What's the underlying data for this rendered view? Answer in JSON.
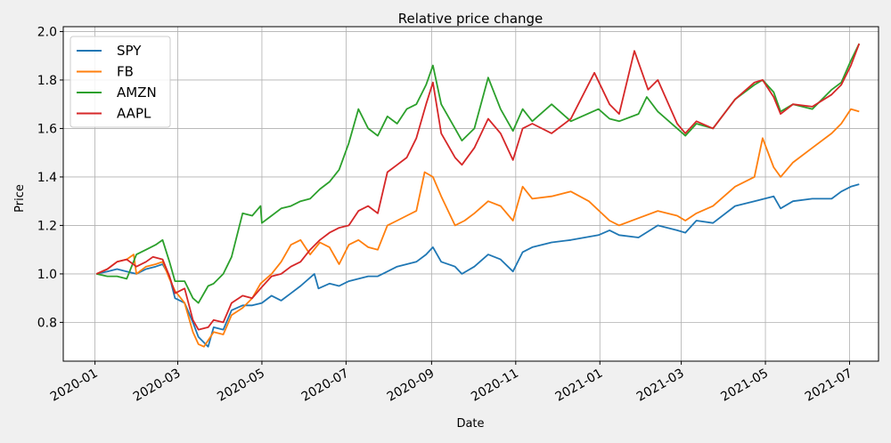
{
  "chart_data": {
    "type": "line",
    "title": "Relative price change",
    "xlabel": "Date",
    "ylabel": "Price",
    "xlim": [
      "2019-12-09",
      "2021-07-22"
    ],
    "ylim": [
      0.64,
      2.02
    ],
    "x_ticks": [
      "2020-01",
      "2020-03",
      "2020-05",
      "2020-07",
      "2020-09",
      "2020-11",
      "2021-01",
      "2021-03",
      "2021-05",
      "2021-07"
    ],
    "y_ticks": [
      0.8,
      1.0,
      1.2,
      1.4,
      1.6,
      1.8,
      2.0
    ],
    "grid": true,
    "legend_position": "top-left",
    "series": [
      {
        "name": "SPY",
        "color": "#1f77b4",
        "points": [
          [
            "2020-01-02",
            1.0
          ],
          [
            "2020-01-10",
            1.01
          ],
          [
            "2020-01-17",
            1.02
          ],
          [
            "2020-01-24",
            1.01
          ],
          [
            "2020-01-31",
            1.0
          ],
          [
            "2020-02-07",
            1.02
          ],
          [
            "2020-02-14",
            1.03
          ],
          [
            "2020-02-19",
            1.04
          ],
          [
            "2020-02-24",
            0.99
          ],
          [
            "2020-02-28",
            0.9
          ],
          [
            "2020-03-06",
            0.88
          ],
          [
            "2020-03-12",
            0.8
          ],
          [
            "2020-03-16",
            0.74
          ],
          [
            "2020-03-23",
            0.7
          ],
          [
            "2020-03-27",
            0.78
          ],
          [
            "2020-04-03",
            0.77
          ],
          [
            "2020-04-09",
            0.85
          ],
          [
            "2020-04-17",
            0.87
          ],
          [
            "2020-04-24",
            0.87
          ],
          [
            "2020-05-01",
            0.88
          ],
          [
            "2020-05-08",
            0.91
          ],
          [
            "2020-05-15",
            0.89
          ],
          [
            "2020-05-22",
            0.92
          ],
          [
            "2020-05-29",
            0.95
          ],
          [
            "2020-06-08",
            1.0
          ],
          [
            "2020-06-11",
            0.94
          ],
          [
            "2020-06-19",
            0.96
          ],
          [
            "2020-06-26",
            0.95
          ],
          [
            "2020-07-03",
            0.97
          ],
          [
            "2020-07-10",
            0.98
          ],
          [
            "2020-07-17",
            0.99
          ],
          [
            "2020-07-24",
            0.99
          ],
          [
            "2020-07-31",
            1.01
          ],
          [
            "2020-08-07",
            1.03
          ],
          [
            "2020-08-14",
            1.04
          ],
          [
            "2020-08-21",
            1.05
          ],
          [
            "2020-08-28",
            1.08
          ],
          [
            "2020-09-02",
            1.11
          ],
          [
            "2020-09-08",
            1.05
          ],
          [
            "2020-09-18",
            1.03
          ],
          [
            "2020-09-23",
            1.0
          ],
          [
            "2020-10-02",
            1.03
          ],
          [
            "2020-10-12",
            1.08
          ],
          [
            "2020-10-21",
            1.06
          ],
          [
            "2020-10-30",
            1.01
          ],
          [
            "2020-11-06",
            1.09
          ],
          [
            "2020-11-13",
            1.11
          ],
          [
            "2020-11-27",
            1.13
          ],
          [
            "2020-12-11",
            1.14
          ],
          [
            "2020-12-31",
            1.16
          ],
          [
            "2021-01-08",
            1.18
          ],
          [
            "2021-01-15",
            1.16
          ],
          [
            "2021-01-29",
            1.15
          ],
          [
            "2021-02-12",
            1.2
          ],
          [
            "2021-02-26",
            1.18
          ],
          [
            "2021-03-04",
            1.17
          ],
          [
            "2021-03-12",
            1.22
          ],
          [
            "2021-03-24",
            1.21
          ],
          [
            "2021-04-09",
            1.28
          ],
          [
            "2021-04-23",
            1.3
          ],
          [
            "2021-05-07",
            1.32
          ],
          [
            "2021-05-12",
            1.27
          ],
          [
            "2021-05-21",
            1.3
          ],
          [
            "2021-06-04",
            1.31
          ],
          [
            "2021-06-18",
            1.31
          ],
          [
            "2021-06-25",
            1.34
          ],
          [
            "2021-07-02",
            1.36
          ],
          [
            "2021-07-08",
            1.37
          ]
        ]
      },
      {
        "name": "FB",
        "color": "#ff7f0e",
        "points": [
          [
            "2020-01-02",
            1.0
          ],
          [
            "2020-01-10",
            1.02
          ],
          [
            "2020-01-17",
            1.05
          ],
          [
            "2020-01-24",
            1.06
          ],
          [
            "2020-01-29",
            1.08
          ],
          [
            "2020-01-31",
            1.0
          ],
          [
            "2020-02-07",
            1.03
          ],
          [
            "2020-02-14",
            1.04
          ],
          [
            "2020-02-19",
            1.05
          ],
          [
            "2020-02-24",
            0.98
          ],
          [
            "2020-02-28",
            0.93
          ],
          [
            "2020-03-06",
            0.88
          ],
          [
            "2020-03-12",
            0.76
          ],
          [
            "2020-03-16",
            0.71
          ],
          [
            "2020-03-20",
            0.7
          ],
          [
            "2020-03-27",
            0.76
          ],
          [
            "2020-04-03",
            0.75
          ],
          [
            "2020-04-09",
            0.83
          ],
          [
            "2020-04-17",
            0.86
          ],
          [
            "2020-04-24",
            0.9
          ],
          [
            "2020-04-30",
            0.96
          ],
          [
            "2020-05-08",
            1.0
          ],
          [
            "2020-05-15",
            1.05
          ],
          [
            "2020-05-22",
            1.12
          ],
          [
            "2020-05-29",
            1.14
          ],
          [
            "2020-06-05",
            1.08
          ],
          [
            "2020-06-12",
            1.13
          ],
          [
            "2020-06-19",
            1.11
          ],
          [
            "2020-06-26",
            1.04
          ],
          [
            "2020-07-03",
            1.12
          ],
          [
            "2020-07-10",
            1.14
          ],
          [
            "2020-07-17",
            1.11
          ],
          [
            "2020-07-24",
            1.1
          ],
          [
            "2020-07-31",
            1.2
          ],
          [
            "2020-08-07",
            1.22
          ],
          [
            "2020-08-14",
            1.24
          ],
          [
            "2020-08-21",
            1.26
          ],
          [
            "2020-08-27",
            1.42
          ],
          [
            "2020-09-02",
            1.4
          ],
          [
            "2020-09-08",
            1.32
          ],
          [
            "2020-09-18",
            1.2
          ],
          [
            "2020-09-25",
            1.22
          ],
          [
            "2020-10-02",
            1.25
          ],
          [
            "2020-10-12",
            1.3
          ],
          [
            "2020-10-21",
            1.28
          ],
          [
            "2020-10-30",
            1.22
          ],
          [
            "2020-11-06",
            1.36
          ],
          [
            "2020-11-13",
            1.31
          ],
          [
            "2020-11-27",
            1.32
          ],
          [
            "2020-12-11",
            1.34
          ],
          [
            "2020-12-24",
            1.3
          ],
          [
            "2021-01-08",
            1.22
          ],
          [
            "2021-01-15",
            1.2
          ],
          [
            "2021-01-29",
            1.23
          ],
          [
            "2021-02-12",
            1.26
          ],
          [
            "2021-02-26",
            1.24
          ],
          [
            "2021-03-04",
            1.22
          ],
          [
            "2021-03-12",
            1.25
          ],
          [
            "2021-03-24",
            1.28
          ],
          [
            "2021-04-09",
            1.36
          ],
          [
            "2021-04-23",
            1.4
          ],
          [
            "2021-04-29",
            1.56
          ],
          [
            "2021-05-07",
            1.44
          ],
          [
            "2021-05-12",
            1.4
          ],
          [
            "2021-05-21",
            1.46
          ],
          [
            "2021-06-04",
            1.52
          ],
          [
            "2021-06-18",
            1.58
          ],
          [
            "2021-06-25",
            1.62
          ],
          [
            "2021-07-02",
            1.68
          ],
          [
            "2021-07-08",
            1.67
          ]
        ]
      },
      {
        "name": "AMZN",
        "color": "#2ca02c",
        "points": [
          [
            "2020-01-02",
            1.0
          ],
          [
            "2020-01-10",
            0.99
          ],
          [
            "2020-01-17",
            0.99
          ],
          [
            "2020-01-24",
            0.98
          ],
          [
            "2020-01-31",
            1.08
          ],
          [
            "2020-02-07",
            1.1
          ],
          [
            "2020-02-14",
            1.12
          ],
          [
            "2020-02-19",
            1.14
          ],
          [
            "2020-02-24",
            1.05
          ],
          [
            "2020-02-28",
            0.97
          ],
          [
            "2020-03-06",
            0.97
          ],
          [
            "2020-03-12",
            0.9
          ],
          [
            "2020-03-16",
            0.88
          ],
          [
            "2020-03-23",
            0.95
          ],
          [
            "2020-03-27",
            0.96
          ],
          [
            "2020-04-03",
            1.0
          ],
          [
            "2020-04-09",
            1.07
          ],
          [
            "2020-04-17",
            1.25
          ],
          [
            "2020-04-24",
            1.24
          ],
          [
            "2020-04-30",
            1.28
          ],
          [
            "2020-05-01",
            1.21
          ],
          [
            "2020-05-08",
            1.24
          ],
          [
            "2020-05-15",
            1.27
          ],
          [
            "2020-05-22",
            1.28
          ],
          [
            "2020-05-29",
            1.3
          ],
          [
            "2020-06-05",
            1.31
          ],
          [
            "2020-06-12",
            1.35
          ],
          [
            "2020-06-19",
            1.38
          ],
          [
            "2020-06-26",
            1.43
          ],
          [
            "2020-07-03",
            1.54
          ],
          [
            "2020-07-10",
            1.68
          ],
          [
            "2020-07-17",
            1.6
          ],
          [
            "2020-07-24",
            1.57
          ],
          [
            "2020-07-31",
            1.65
          ],
          [
            "2020-08-07",
            1.62
          ],
          [
            "2020-08-14",
            1.68
          ],
          [
            "2020-08-21",
            1.7
          ],
          [
            "2020-08-28",
            1.78
          ],
          [
            "2020-09-02",
            1.86
          ],
          [
            "2020-09-08",
            1.7
          ],
          [
            "2020-09-18",
            1.6
          ],
          [
            "2020-09-23",
            1.55
          ],
          [
            "2020-10-02",
            1.6
          ],
          [
            "2020-10-12",
            1.81
          ],
          [
            "2020-10-21",
            1.68
          ],
          [
            "2020-10-30",
            1.59
          ],
          [
            "2020-11-06",
            1.68
          ],
          [
            "2020-11-13",
            1.63
          ],
          [
            "2020-11-27",
            1.7
          ],
          [
            "2020-12-11",
            1.63
          ],
          [
            "2020-12-31",
            1.68
          ],
          [
            "2021-01-08",
            1.64
          ],
          [
            "2021-01-15",
            1.63
          ],
          [
            "2021-01-29",
            1.66
          ],
          [
            "2021-02-04",
            1.73
          ],
          [
            "2021-02-12",
            1.67
          ],
          [
            "2021-02-26",
            1.6
          ],
          [
            "2021-03-04",
            1.57
          ],
          [
            "2021-03-12",
            1.62
          ],
          [
            "2021-03-24",
            1.6
          ],
          [
            "2021-04-09",
            1.72
          ],
          [
            "2021-04-23",
            1.78
          ],
          [
            "2021-04-29",
            1.8
          ],
          [
            "2021-05-07",
            1.75
          ],
          [
            "2021-05-12",
            1.67
          ],
          [
            "2021-05-21",
            1.7
          ],
          [
            "2021-06-04",
            1.68
          ],
          [
            "2021-06-18",
            1.76
          ],
          [
            "2021-06-25",
            1.79
          ],
          [
            "2021-07-02",
            1.88
          ],
          [
            "2021-07-08",
            1.95
          ]
        ]
      },
      {
        "name": "AAPL",
        "color": "#d62728",
        "points": [
          [
            "2020-01-02",
            1.0
          ],
          [
            "2020-01-10",
            1.02
          ],
          [
            "2020-01-17",
            1.05
          ],
          [
            "2020-01-24",
            1.06
          ],
          [
            "2020-01-31",
            1.03
          ],
          [
            "2020-02-07",
            1.05
          ],
          [
            "2020-02-12",
            1.07
          ],
          [
            "2020-02-19",
            1.06
          ],
          [
            "2020-02-24",
            0.99
          ],
          [
            "2020-02-28",
            0.92
          ],
          [
            "2020-03-06",
            0.94
          ],
          [
            "2020-03-12",
            0.81
          ],
          [
            "2020-03-16",
            0.77
          ],
          [
            "2020-03-23",
            0.78
          ],
          [
            "2020-03-27",
            0.81
          ],
          [
            "2020-04-03",
            0.8
          ],
          [
            "2020-04-09",
            0.88
          ],
          [
            "2020-04-17",
            0.91
          ],
          [
            "2020-04-24",
            0.9
          ],
          [
            "2020-04-30",
            0.94
          ],
          [
            "2020-05-08",
            0.99
          ],
          [
            "2020-05-15",
            1.0
          ],
          [
            "2020-05-22",
            1.03
          ],
          [
            "2020-05-29",
            1.05
          ],
          [
            "2020-06-05",
            1.1
          ],
          [
            "2020-06-12",
            1.14
          ],
          [
            "2020-06-19",
            1.17
          ],
          [
            "2020-06-26",
            1.19
          ],
          [
            "2020-07-03",
            1.2
          ],
          [
            "2020-07-10",
            1.26
          ],
          [
            "2020-07-17",
            1.28
          ],
          [
            "2020-07-24",
            1.25
          ],
          [
            "2020-07-31",
            1.42
          ],
          [
            "2020-08-07",
            1.45
          ],
          [
            "2020-08-14",
            1.48
          ],
          [
            "2020-08-21",
            1.56
          ],
          [
            "2020-08-28",
            1.7
          ],
          [
            "2020-09-02",
            1.79
          ],
          [
            "2020-09-08",
            1.58
          ],
          [
            "2020-09-18",
            1.48
          ],
          [
            "2020-09-23",
            1.45
          ],
          [
            "2020-10-02",
            1.52
          ],
          [
            "2020-10-12",
            1.64
          ],
          [
            "2020-10-21",
            1.58
          ],
          [
            "2020-10-30",
            1.47
          ],
          [
            "2020-11-06",
            1.6
          ],
          [
            "2020-11-13",
            1.62
          ],
          [
            "2020-11-27",
            1.58
          ],
          [
            "2020-12-11",
            1.64
          ],
          [
            "2020-12-28",
            1.83
          ],
          [
            "2021-01-08",
            1.7
          ],
          [
            "2021-01-15",
            1.66
          ],
          [
            "2021-01-26",
            1.92
          ],
          [
            "2021-02-05",
            1.76
          ],
          [
            "2021-02-12",
            1.8
          ],
          [
            "2021-02-26",
            1.62
          ],
          [
            "2021-03-04",
            1.58
          ],
          [
            "2021-03-12",
            1.63
          ],
          [
            "2021-03-24",
            1.6
          ],
          [
            "2021-04-09",
            1.72
          ],
          [
            "2021-04-23",
            1.79
          ],
          [
            "2021-04-29",
            1.8
          ],
          [
            "2021-05-07",
            1.73
          ],
          [
            "2021-05-12",
            1.66
          ],
          [
            "2021-05-21",
            1.7
          ],
          [
            "2021-06-04",
            1.69
          ],
          [
            "2021-06-18",
            1.74
          ],
          [
            "2021-06-25",
            1.78
          ],
          [
            "2021-07-02",
            1.86
          ],
          [
            "2021-07-08",
            1.95
          ]
        ]
      }
    ]
  }
}
